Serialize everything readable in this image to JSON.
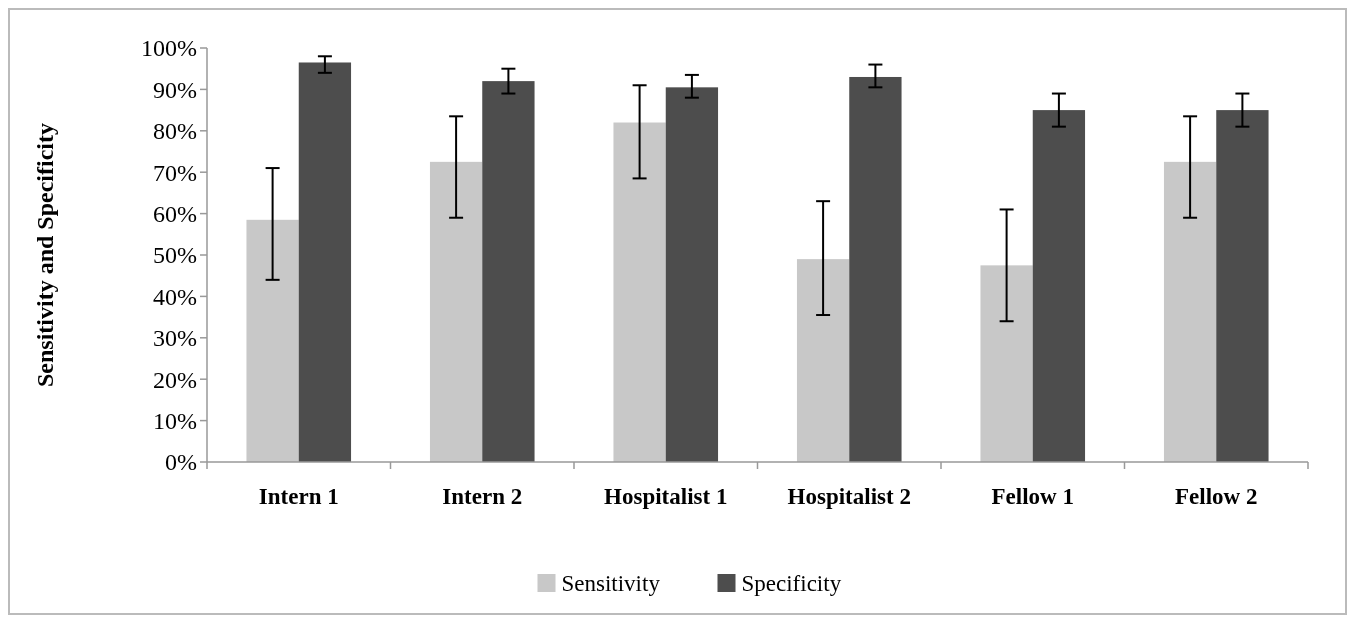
{
  "chart_data": {
    "type": "bar",
    "ylabel": "Sensitivity and Specificity",
    "categories": [
      "Intern 1",
      "Intern 2",
      "Hospitalist 1",
      "Hospitalist 2",
      "Fellow 1",
      "Fellow 2"
    ],
    "series": [
      {
        "name": "Sensitivity",
        "color": "#c8c8c8",
        "values": [
          58.5,
          72.5,
          82,
          49,
          47.5,
          72.5
        ],
        "errors": [
          [
            44,
            71
          ],
          [
            59,
            83.5
          ],
          [
            68.5,
            91
          ],
          [
            35.5,
            63
          ],
          [
            34,
            61
          ],
          [
            59,
            83.5
          ]
        ]
      },
      {
        "name": "Specificity",
        "color": "#4d4d4d",
        "values": [
          96.5,
          92,
          90.5,
          93,
          85,
          85
        ],
        "errors": [
          [
            94,
            98
          ],
          [
            89,
            95
          ],
          [
            88,
            93.5
          ],
          [
            90.5,
            96
          ],
          [
            81,
            89
          ],
          [
            81,
            89
          ]
        ]
      }
    ],
    "ylim": [
      0,
      100
    ],
    "yticks": [
      {
        "value": 0,
        "label": "0%"
      },
      {
        "value": 10,
        "label": "10%"
      },
      {
        "value": 20,
        "label": "20%"
      },
      {
        "value": 30,
        "label": "30%"
      },
      {
        "value": 40,
        "label": "40%"
      },
      {
        "value": 50,
        "label": "50%"
      },
      {
        "value": 60,
        "label": "60%"
      },
      {
        "value": 70,
        "label": "70%"
      },
      {
        "value": 80,
        "label": "80%"
      },
      {
        "value": 90,
        "label": "90%"
      },
      {
        "value": 100,
        "label": "100%"
      }
    ],
    "grid": false,
    "legend": "bottom"
  }
}
